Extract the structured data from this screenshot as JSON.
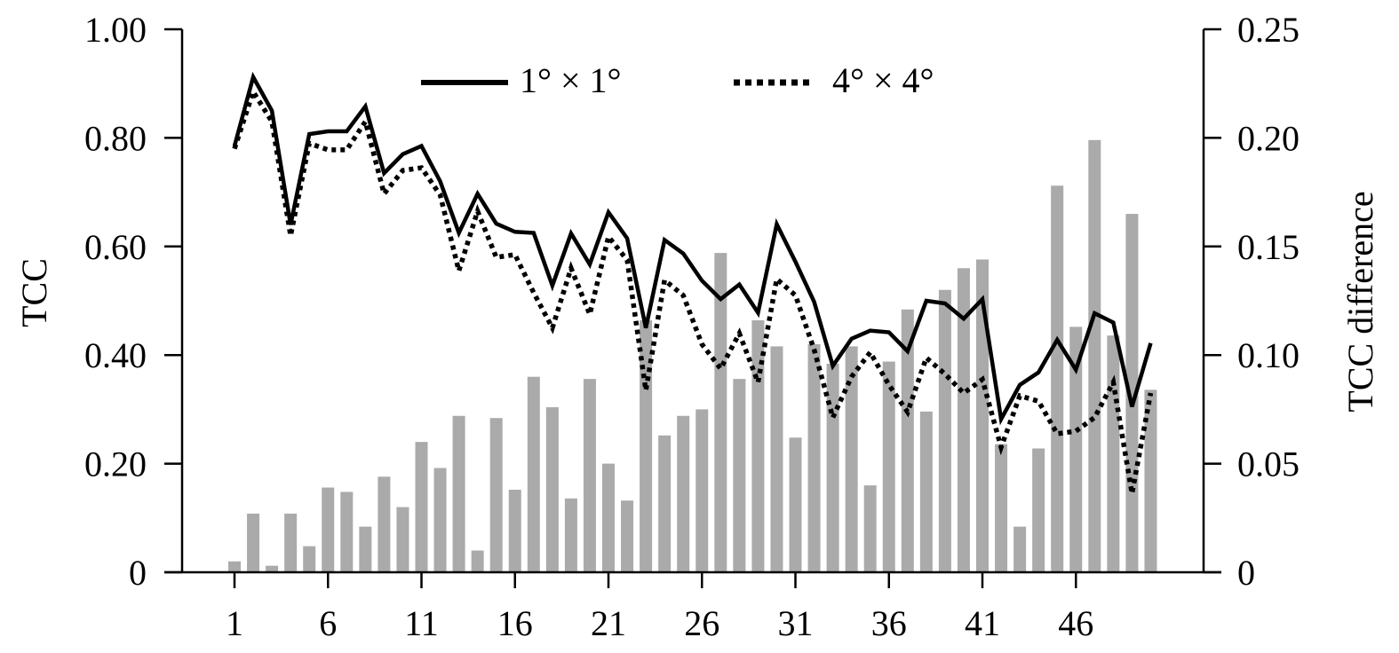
{
  "chart_data": {
    "type": "bar+line",
    "xlabel": "",
    "ylabel_left": "TCC",
    "ylabel_right": "TCC difference",
    "x_ticks": [
      "1",
      "6",
      "11",
      "16",
      "21",
      "26",
      "31",
      "36",
      "41",
      "46"
    ],
    "ylim_left": [
      0,
      1.0
    ],
    "ylim_right": [
      0,
      0.25
    ],
    "y_ticks_left": [
      "0",
      "0.20",
      "0.40",
      "0.60",
      "0.80",
      "1.00"
    ],
    "y_ticks_right": [
      "0",
      "0.05",
      "0.10",
      "0.15",
      "0.20",
      "0.25"
    ],
    "legend_position": "top-center",
    "colors": {
      "bars": "#aaaaaa",
      "lines": "#000000"
    },
    "x": [
      1,
      2,
      3,
      4,
      5,
      6,
      7,
      8,
      9,
      10,
      11,
      12,
      13,
      14,
      15,
      16,
      17,
      18,
      19,
      20,
      21,
      22,
      23,
      24,
      25,
      26,
      27,
      28,
      29,
      30,
      31,
      32,
      33,
      34,
      35,
      36,
      37,
      38,
      39,
      40,
      41,
      42,
      43,
      44,
      45,
      46,
      47,
      48,
      49,
      50
    ],
    "bars": {
      "axis": "right",
      "values": [
        0.005,
        0.027,
        0.003,
        0.027,
        0.012,
        0.039,
        0.037,
        0.021,
        0.044,
        0.03,
        0.06,
        0.048,
        0.072,
        0.01,
        0.071,
        0.038,
        0.09,
        0.076,
        0.034,
        0.089,
        0.05,
        0.033,
        0.116,
        0.063,
        0.072,
        0.075,
        0.147,
        0.089,
        0.116,
        0.104,
        0.062,
        0.105,
        0.096,
        0.104,
        0.04,
        0.097,
        0.121,
        0.074,
        0.13,
        0.14,
        0.144,
        0.059,
        0.021,
        0.057,
        0.178,
        0.113,
        0.199,
        0.109,
        0.165,
        0.084
      ]
    },
    "series": [
      {
        "name": "1° × 1°",
        "style": "solid",
        "axis": "left",
        "values": [
          0.785,
          0.912,
          0.85,
          0.64,
          0.807,
          0.812,
          0.812,
          0.858,
          0.735,
          0.77,
          0.785,
          0.72,
          0.625,
          0.697,
          0.642,
          0.627,
          0.625,
          0.528,
          0.624,
          0.567,
          0.663,
          0.615,
          0.45,
          0.612,
          0.587,
          0.537,
          0.503,
          0.53,
          0.478,
          0.641,
          0.572,
          0.498,
          0.38,
          0.43,
          0.445,
          0.442,
          0.407,
          0.5,
          0.495,
          0.467,
          0.503,
          0.282,
          0.345,
          0.368,
          0.428,
          0.373,
          0.477,
          0.46,
          0.305,
          0.422
        ]
      },
      {
        "name": "4° × 4°",
        "style": "dotted",
        "axis": "left",
        "values": [
          0.78,
          0.885,
          0.83,
          0.62,
          0.79,
          0.778,
          0.778,
          0.83,
          0.697,
          0.74,
          0.745,
          0.695,
          0.555,
          0.665,
          0.58,
          0.585,
          0.515,
          0.45,
          0.56,
          0.475,
          0.618,
          0.575,
          0.335,
          0.538,
          0.51,
          0.42,
          0.375,
          0.44,
          0.35,
          0.54,
          0.51,
          0.41,
          0.285,
          0.36,
          0.405,
          0.345,
          0.295,
          0.395,
          0.365,
          0.33,
          0.355,
          0.23,
          0.325,
          0.315,
          0.255,
          0.26,
          0.285,
          0.35,
          0.145,
          0.33
        ]
      }
    ]
  }
}
